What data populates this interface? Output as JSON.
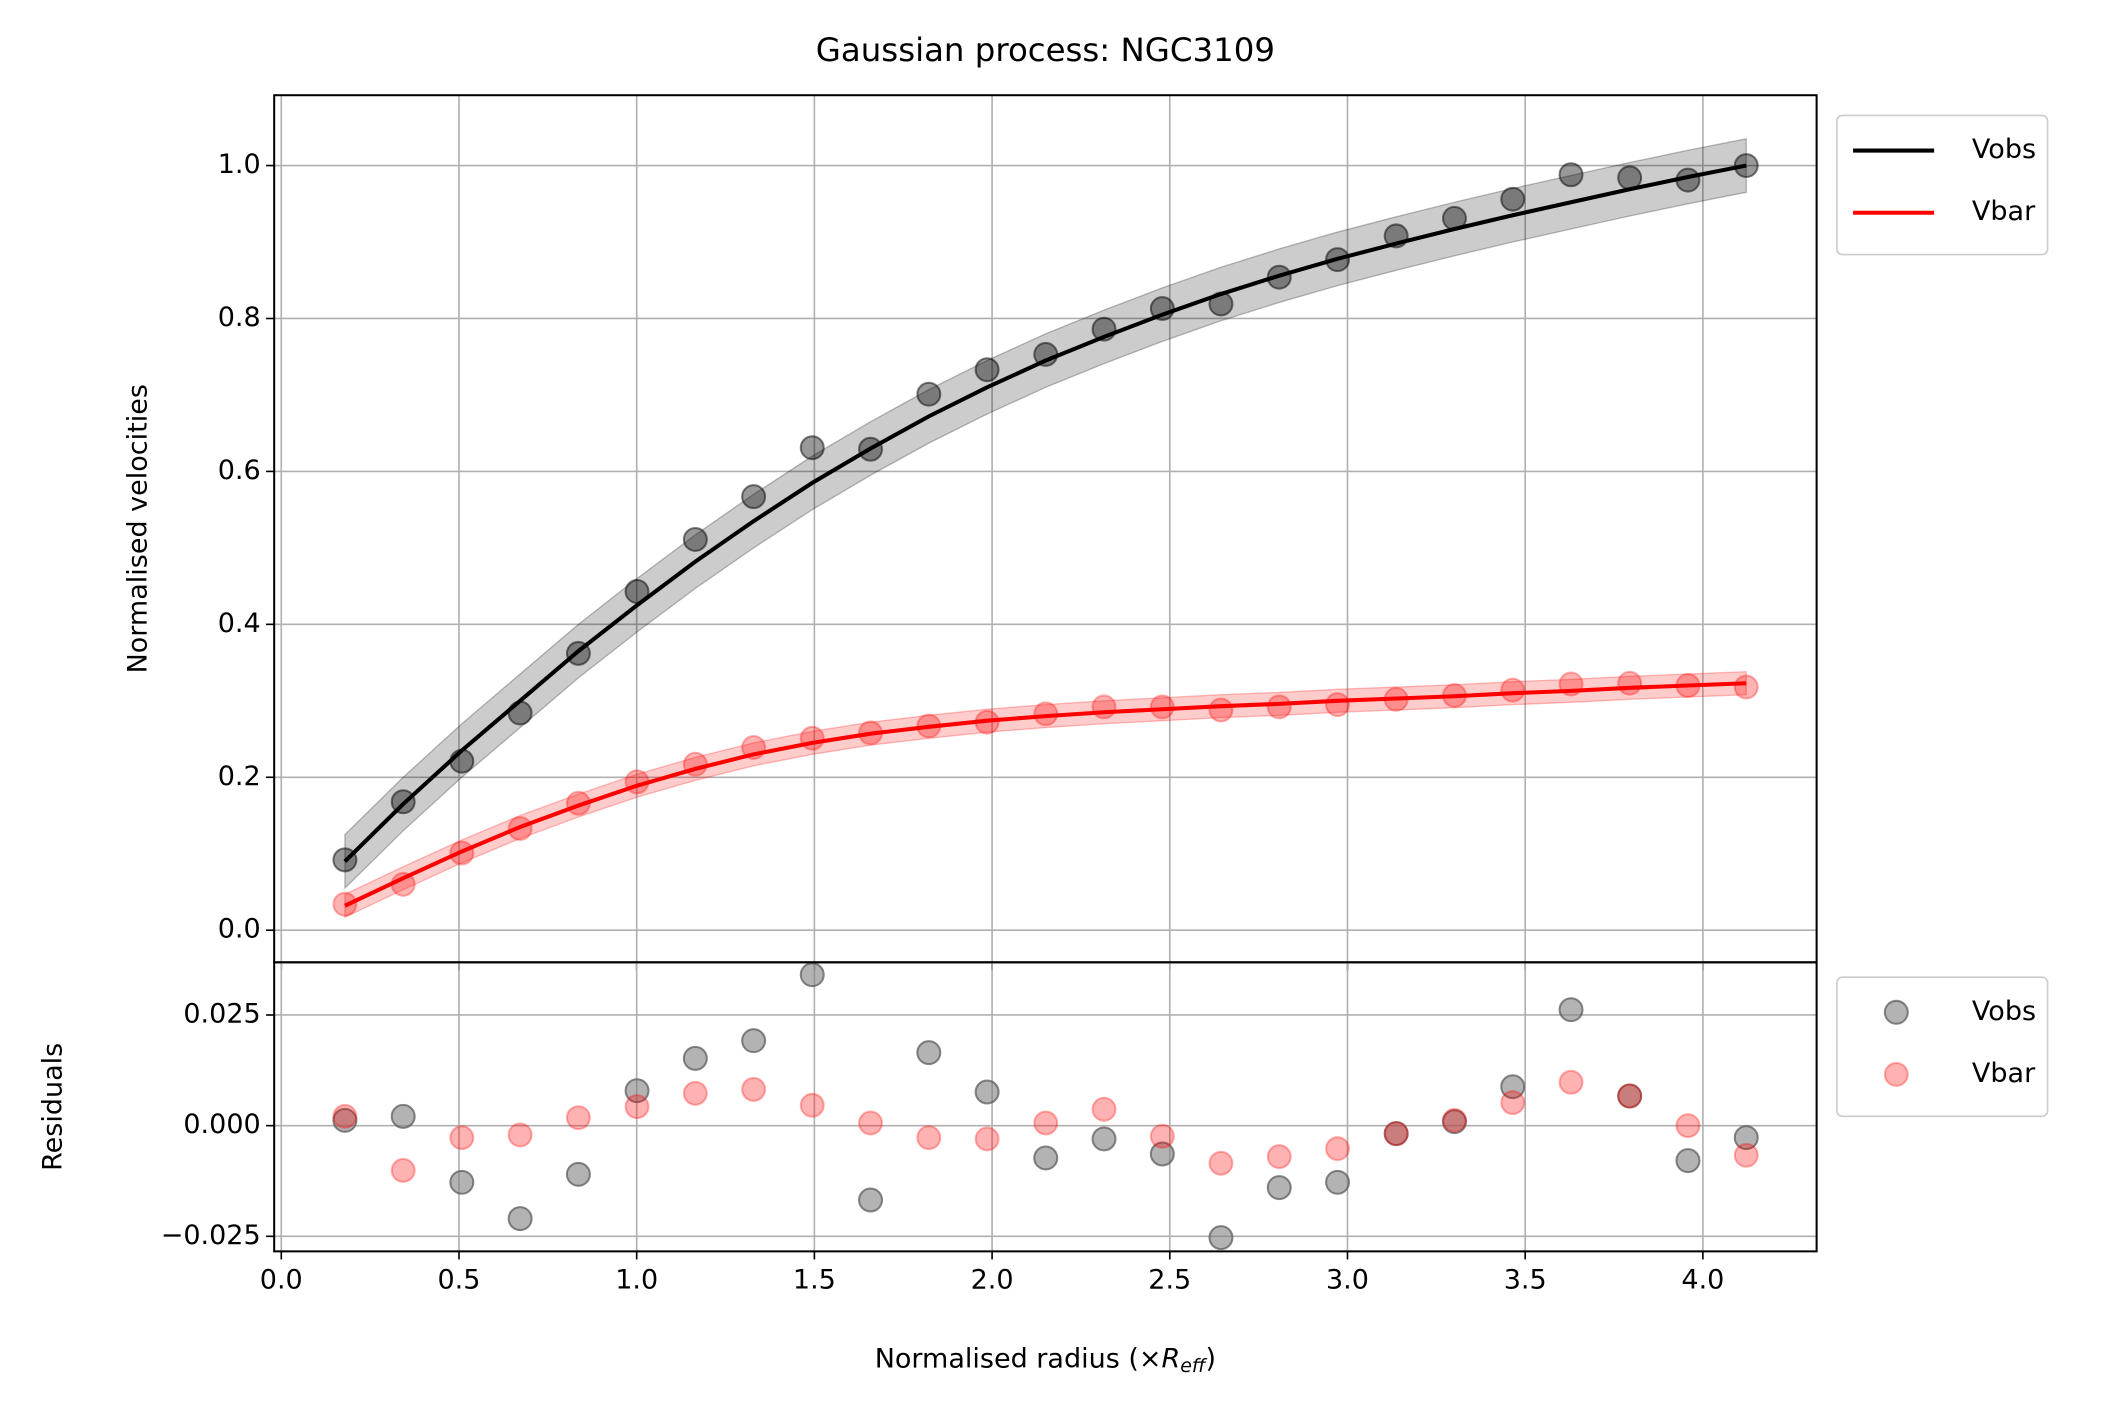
{
  "chart_data": [
    {
      "type": "line",
      "title": "Gaussian process: NGC3109",
      "ylabel": "Normalised velocities",
      "xlim": [
        -0.02,
        4.32
      ],
      "ylim": [
        -0.042,
        1.092
      ],
      "yticks": [
        {
          "value": 0.0,
          "label": "0.0"
        },
        0.2,
        0.4,
        0.6,
        0.8,
        {
          "value": 1.0,
          "label": "1.0"
        }
      ],
      "grid": true,
      "legend": "outside upper right",
      "x": [
        0.179,
        0.343,
        0.508,
        0.672,
        0.836,
        1.001,
        1.165,
        1.329,
        1.494,
        1.658,
        1.822,
        1.986,
        2.151,
        2.315,
        2.479,
        2.644,
        2.808,
        2.972,
        3.137,
        3.301,
        3.465,
        3.629,
        3.794,
        3.958,
        4.122
      ],
      "series": [
        {
          "name": "Vobs",
          "color": "#000000",
          "band": 0.035,
          "values": [
            0.09,
            0.165,
            0.235,
            0.3,
            0.365,
            0.425,
            0.482,
            0.535,
            0.585,
            0.63,
            0.672,
            0.71,
            0.745,
            0.776,
            0.805,
            0.832,
            0.856,
            0.878,
            0.898,
            0.917,
            0.935,
            0.952,
            0.969,
            0.985,
            1.0
          ],
          "observed": [
            0.092,
            0.168,
            0.221,
            0.284,
            0.362,
            0.443,
            0.511,
            0.567,
            0.631,
            0.629,
            0.701,
            0.733,
            0.753,
            0.786,
            0.813,
            0.819,
            0.854,
            0.877,
            0.908,
            0.931,
            0.956,
            0.988,
            0.984,
            0.981,
            1.0
          ]
        },
        {
          "name": "Vbar",
          "color": "#ff0000",
          "band": 0.015,
          "values": [
            0.032,
            0.068,
            0.103,
            0.135,
            0.163,
            0.189,
            0.211,
            0.23,
            0.245,
            0.257,
            0.266,
            0.274,
            0.28,
            0.285,
            0.289,
            0.293,
            0.296,
            0.3,
            0.303,
            0.306,
            0.31,
            0.313,
            0.317,
            0.32,
            0.323
          ],
          "observed": [
            0.034,
            0.06,
            0.101,
            0.133,
            0.166,
            0.194,
            0.217,
            0.239,
            0.251,
            0.258,
            0.267,
            0.272,
            0.283,
            0.292,
            0.292,
            0.288,
            0.292,
            0.295,
            0.302,
            0.307,
            0.314,
            0.322,
            0.323,
            0.32,
            0.318
          ]
        }
      ]
    },
    {
      "type": "scatter",
      "ylabel": "Residuals",
      "xlabel": [
        "Normalised radius (×",
        "R",
        "eff",
        ")"
      ],
      "xlim": [
        -0.02,
        4.32
      ],
      "ylim": [
        -0.0284,
        0.0369
      ],
      "xticks": [
        {
          "value": 0.0,
          "label": "0.0"
        },
        0.5,
        {
          "value": 1.0,
          "label": "1.0"
        },
        1.5,
        {
          "value": 2.0,
          "label": "2.0"
        },
        2.5,
        {
          "value": 3.0,
          "label": "3.0"
        },
        3.5,
        {
          "value": 4.0,
          "label": "4.0"
        }
      ],
      "yticks": [
        {
          "value": -0.025,
          "label": "−0.025"
        },
        {
          "value": 0.0,
          "label": "0.000"
        },
        {
          "value": 0.025,
          "label": "0.025"
        }
      ],
      "grid": true,
      "legend": "outside upper right",
      "x": [
        0.179,
        0.343,
        0.508,
        0.672,
        0.836,
        1.001,
        1.165,
        1.329,
        1.494,
        1.658,
        1.822,
        1.986,
        2.151,
        2.315,
        2.479,
        2.644,
        2.808,
        2.972,
        3.137,
        3.301,
        3.465,
        3.629,
        3.794,
        3.958,
        4.122
      ],
      "series": [
        {
          "name": "Vobs",
          "color": "#808080",
          "values": [
            0.0012,
            0.0021,
            -0.0128,
            -0.021,
            -0.011,
            0.0079,
            0.0152,
            0.0192,
            0.0341,
            -0.0168,
            0.0165,
            0.0076,
            -0.0073,
            -0.003,
            -0.0064,
            -0.0253,
            -0.014,
            -0.0128,
            -0.0018,
            0.0009,
            0.0088,
            0.0262,
            0.0067,
            -0.0079,
            -0.0027
          ]
        },
        {
          "name": "Vbar",
          "color": "#ff0000",
          "values": [
            0.0021,
            -0.0101,
            -0.0027,
            -0.0021,
            0.0018,
            0.0043,
            0.0073,
            0.0082,
            0.0046,
            0.0006,
            -0.0027,
            -0.003,
            0.0006,
            0.0037,
            -0.0024,
            -0.0085,
            -0.007,
            -0.0052,
            -0.0018,
            0.0012,
            0.0052,
            0.0098,
            0.0067,
            0.0,
            -0.0067
          ]
        }
      ]
    }
  ]
}
